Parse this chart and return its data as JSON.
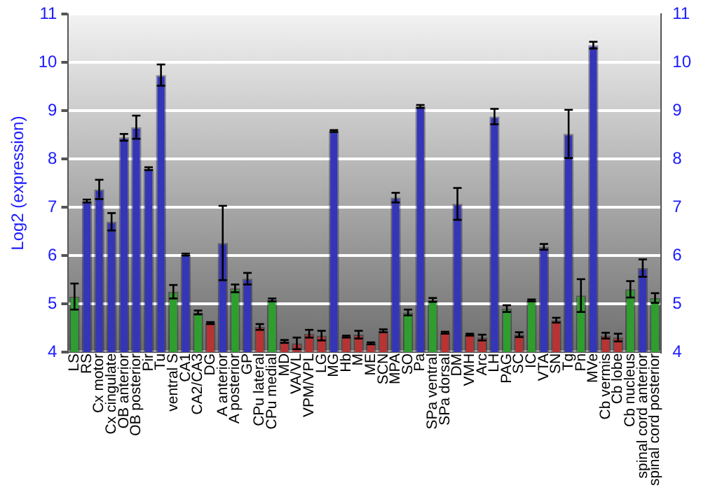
{
  "chart_data": {
    "type": "bar",
    "ylabel": "Log2 (expression)",
    "categories": [
      "LS",
      "RS",
      "Cx motor",
      "Cx cingulate",
      "OB anterior",
      "OB posterior",
      "Pir",
      "Tu",
      "ventral S",
      "CA1",
      "CA2/CA3",
      "DG",
      "A anterior",
      "A posterior",
      "GP",
      "CPu lateral",
      "CPu medial",
      "MD",
      "VA/VL",
      "VPM/VPL",
      "LG",
      "MG",
      "Hb",
      "M",
      "ME",
      "SCN",
      "MPA",
      "SO",
      "Pa",
      "SPa ventral",
      "SPa dorsal",
      "DM",
      "VMH",
      "Arc",
      "LH",
      "PAG",
      "SC",
      "IC",
      "VTA",
      "SN",
      "Tg",
      "Pn",
      "MVe",
      "Cb vermis",
      "Cb lobe",
      "Cb nucleus",
      "spinal cord anterior",
      "spinal cord posterior"
    ],
    "values": [
      5.15,
      7.13,
      7.37,
      6.7,
      8.45,
      8.66,
      7.8,
      9.74,
      5.25,
      6.02,
      4.82,
      4.6,
      6.26,
      5.32,
      5.52,
      4.52,
      5.08,
      4.22,
      4.18,
      4.38,
      4.34,
      8.58,
      4.32,
      4.36,
      4.18,
      4.44,
      7.2,
      4.82,
      9.09,
      5.08,
      4.4,
      7.07,
      4.36,
      4.3,
      8.88,
      4.9,
      4.36,
      5.07,
      6.18,
      4.66,
      8.52,
      5.17,
      10.36,
      4.34,
      4.3,
      5.3,
      5.74,
      5.12
    ],
    "errors": [
      0.27,
      0.03,
      0.2,
      0.18,
      0.07,
      0.24,
      0.03,
      0.22,
      0.14,
      0.02,
      0.04,
      0.02,
      0.77,
      0.08,
      0.12,
      0.06,
      0.03,
      0.03,
      0.12,
      0.08,
      0.1,
      0.02,
      0.02,
      0.08,
      0.02,
      0.03,
      0.1,
      0.06,
      0.03,
      0.04,
      0.02,
      0.33,
      0.02,
      0.06,
      0.16,
      0.07,
      0.05,
      0.02,
      0.06,
      0.05,
      0.5,
      0.34,
      0.07,
      0.06,
      0.08,
      0.17,
      0.18,
      0.1
    ],
    "colors": [
      "#2e9e2e",
      "#3535b8",
      "#3535b8",
      "#3535b8",
      "#3535b8",
      "#3535b8",
      "#3535b8",
      "#3535b8",
      "#2e9e2e",
      "#3535b8",
      "#2e9e2e",
      "#b83333",
      "#3535b8",
      "#2e9e2e",
      "#3535b8",
      "#b83333",
      "#2e9e2e",
      "#b83333",
      "#b83333",
      "#b83333",
      "#b83333",
      "#3535b8",
      "#b83333",
      "#b83333",
      "#b83333",
      "#b83333",
      "#3535b8",
      "#2e9e2e",
      "#3535b8",
      "#2e9e2e",
      "#b83333",
      "#3535b8",
      "#b83333",
      "#b83333",
      "#3535b8",
      "#2e9e2e",
      "#b83333",
      "#2e9e2e",
      "#3535b8",
      "#b83333",
      "#3535b8",
      "#2e9e2e",
      "#3535b8",
      "#b83333",
      "#b83333",
      "#2e9e2e",
      "#3535b8",
      "#2e9e2e"
    ],
    "ylim": [
      4,
      11
    ],
    "yticks": [
      4,
      5,
      6,
      7,
      8,
      9,
      10,
      11
    ],
    "y2lim": [
      4,
      11
    ],
    "y2ticks": [
      4,
      5,
      6,
      7,
      8,
      9,
      10,
      11
    ],
    "grid": "y",
    "legend": false
  }
}
